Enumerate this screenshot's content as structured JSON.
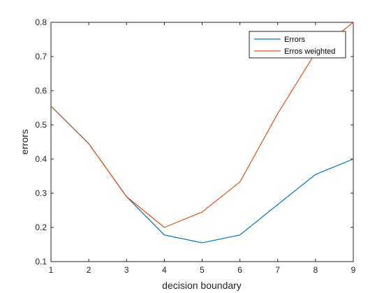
{
  "chart_data": {
    "type": "line",
    "xlabel": "decision boundary",
    "ylabel": "errors",
    "xlim": [
      1,
      9
    ],
    "ylim": [
      0.1,
      0.8
    ],
    "xticks": [
      1,
      2,
      3,
      4,
      5,
      6,
      7,
      8,
      9
    ],
    "yticks": [
      0.1,
      0.2,
      0.3,
      0.4,
      0.5,
      0.6,
      0.7,
      0.8
    ],
    "grid": false,
    "legend_position": "top-right",
    "x": [
      1,
      2,
      3,
      4,
      5,
      6,
      7,
      8,
      9
    ],
    "series": [
      {
        "name": "Errors",
        "color": "#0072BD",
        "values": [
          0.555,
          0.445,
          0.29,
          0.178,
          0.155,
          0.178,
          0.267,
          0.355,
          0.4
        ]
      },
      {
        "name": "Erros weighted",
        "color": "#D95319",
        "values": [
          0.555,
          0.445,
          0.29,
          0.2,
          0.245,
          0.333,
          0.533,
          0.711,
          0.8
        ]
      }
    ]
  }
}
